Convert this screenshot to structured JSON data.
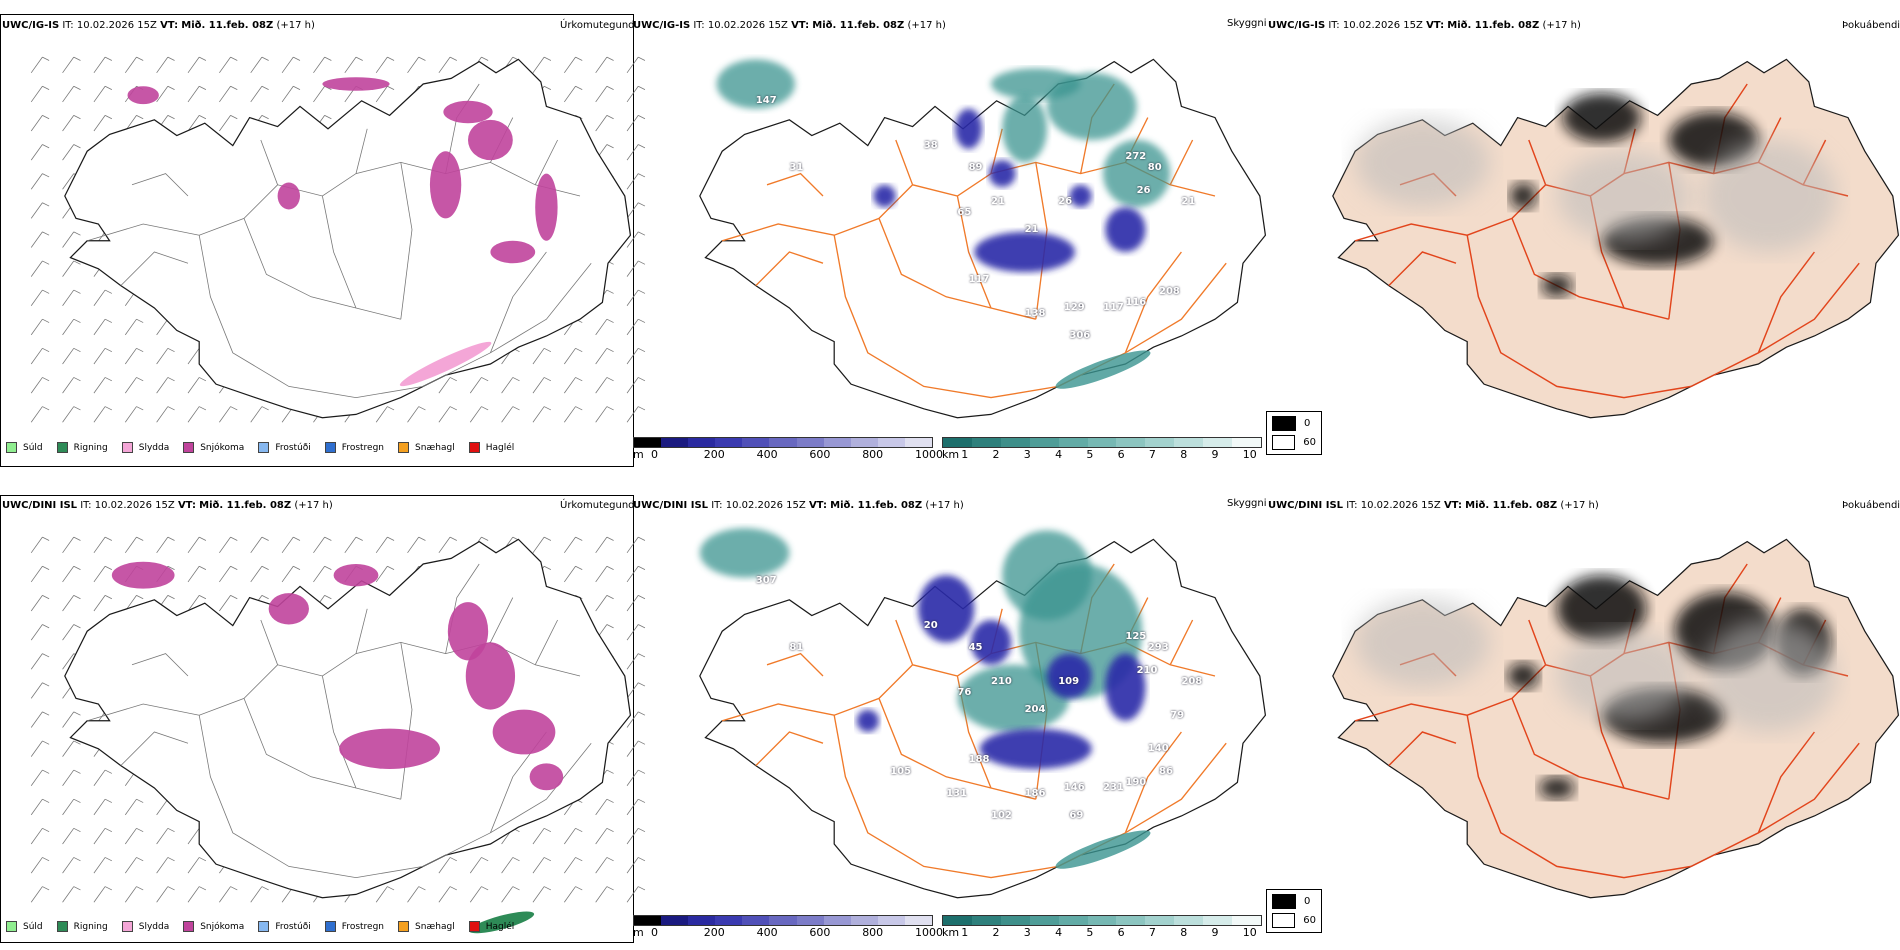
{
  "rows": [
    {
      "model": "UWC/IG-IS",
      "it_label": "IT:",
      "it_value": "10.02.2026 15Z",
      "vt_label": "VT:",
      "vt_value": "Mið. 11.feb. 08Z",
      "lead": "(+17 h)",
      "cloud_numbers": [
        "147",
        "38",
        "89",
        "21",
        "65",
        "21",
        "26",
        "272",
        "26",
        "80",
        "21",
        "117",
        "138",
        "129",
        "117",
        "116",
        "208",
        "306",
        "31"
      ]
    },
    {
      "model": "UWC/DINI ISL",
      "it_label": "IT:",
      "it_value": "10.02.2026 15Z",
      "vt_label": "VT:",
      "vt_value": "Mið. 11.feb. 08Z",
      "lead": "(+17 h)",
      "cloud_numbers": [
        "307",
        "20",
        "45",
        "210",
        "76",
        "204",
        "109",
        "125",
        "210",
        "293",
        "208",
        "188",
        "186",
        "146",
        "231",
        "190",
        "86",
        "69",
        "81",
        "131",
        "102",
        "140",
        "79",
        "105"
      ]
    }
  ],
  "panels": {
    "precip_type": {
      "title": "Úrkomutegund",
      "legend": [
        {
          "label": "Súld",
          "color": "#90ee90"
        },
        {
          "label": "Rigning",
          "color": "#2e8b57"
        },
        {
          "label": "Slydda",
          "color": "#f4a6d7"
        },
        {
          "label": "Snjókoma",
          "color": "#c0449c"
        },
        {
          "label": "Frostúði",
          "color": "#87b8f0"
        },
        {
          "label": "Frostregn",
          "color": "#2f6fcf"
        },
        {
          "label": "Snæhagl",
          "color": "#f4a020"
        },
        {
          "label": "Haglél",
          "color": "#e01010"
        }
      ]
    },
    "cloud_cover": {
      "title": "Skyggni",
      "cbar_m": {
        "unit": "m",
        "ticks": [
          "0",
          "200",
          "400",
          "600",
          "800",
          "1000"
        ],
        "colors": [
          "#000000",
          "#1a1a80",
          "#2a2aa0",
          "#3a3ab0",
          "#5050b8",
          "#6868c0",
          "#7c7cc8",
          "#9898d4",
          "#b0b0dc",
          "#c8c8e8",
          "#e0e0f0"
        ]
      },
      "cbar_km": {
        "unit": "km",
        "ticks": [
          "1",
          "2",
          "3",
          "4",
          "5",
          "6",
          "7",
          "8",
          "9",
          "10"
        ],
        "colors": [
          "#1d6f6c",
          "#2e807c",
          "#3e8f8a",
          "#4f9d98",
          "#62aba6",
          "#76b8b3",
          "#8cc5c0",
          "#a3d2ce",
          "#bcdfdc",
          "#d6ecea",
          "#f2f9f8"
        ]
      }
    },
    "fog": {
      "title": "Þokuábendi",
      "legend": [
        {
          "label": "0",
          "color": "#000000"
        },
        {
          "label": "60",
          "color": "#ffffff"
        }
      ]
    }
  },
  "colors": {
    "iceland_outline": "#1a1a1a",
    "roads": "#f07a2a",
    "land_fog": "#f3dccb",
    "snow": "#c0449c",
    "sleet": "#f4a6d7",
    "rain": "#2e8b57",
    "teal": "#3a9490",
    "navy": "#2b2ba8"
  }
}
